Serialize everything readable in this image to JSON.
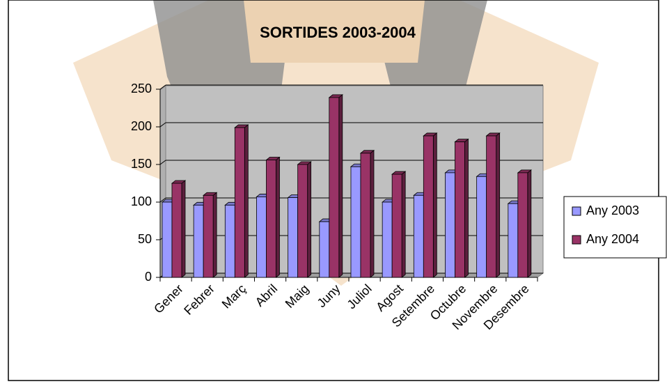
{
  "chart_data": {
    "type": "bar",
    "title": "SORTIDES 2003-2004",
    "categories": [
      "Gener",
      "Febrer",
      "Març",
      "Abril",
      "Maig",
      "Juny",
      "Juliol",
      "Agost",
      "Setembre",
      "Octubre",
      "Novembre",
      "Desembre"
    ],
    "series": [
      {
        "name": "Any 2003",
        "color": "#9999ff",
        "values": [
          100,
          96,
          96,
          107,
          106,
          74,
          147,
          100,
          109,
          139,
          134,
          98
        ]
      },
      {
        "name": "Any 2004",
        "color": "#993366",
        "values": [
          125,
          109,
          199,
          156,
          150,
          239,
          165,
          137,
          188,
          180,
          188,
          139
        ]
      }
    ],
    "ylim": [
      0,
      250
    ],
    "yticks": [
      0,
      50,
      100,
      150,
      200,
      250
    ],
    "grid": true,
    "legend": "right"
  }
}
